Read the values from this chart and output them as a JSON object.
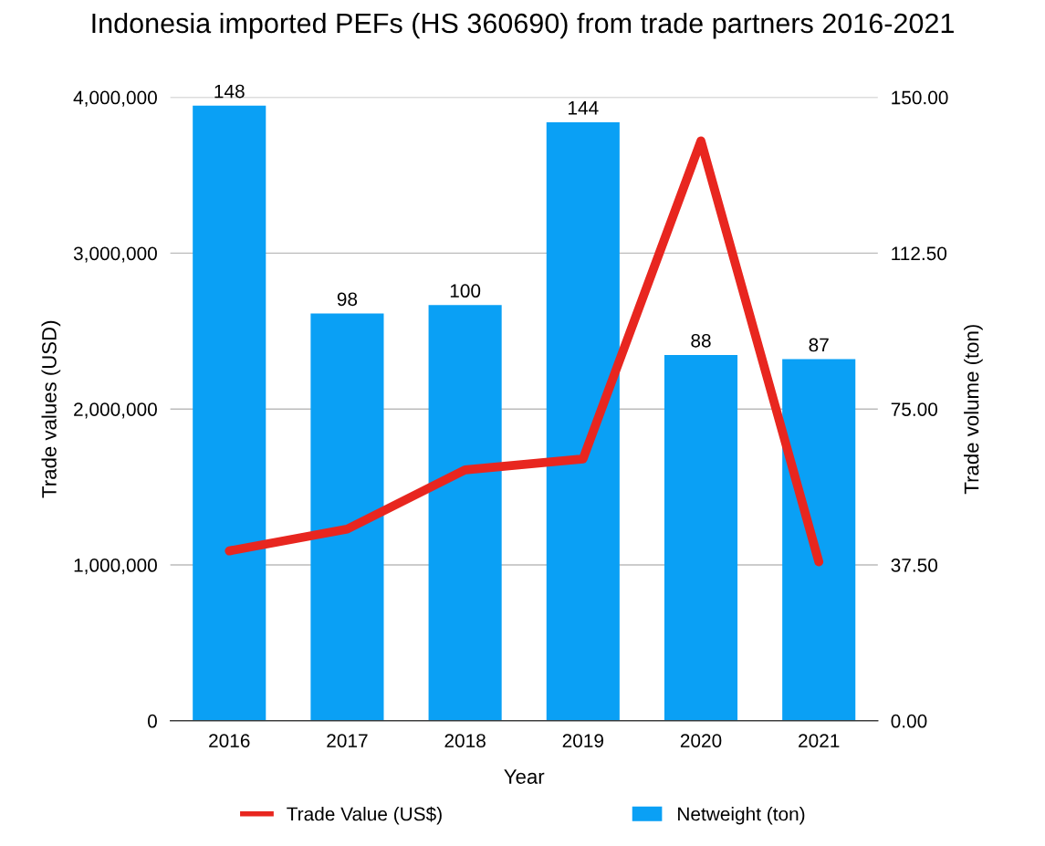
{
  "chart_data": {
    "type": "bar",
    "title": "Indonesia imported PEFs (HS 360690) from trade partners 2016-2021",
    "xlabel": "Year",
    "ylabel": "Trade values (USD)",
    "y2label": "Trade volume (ton)",
    "categories": [
      "2016",
      "2017",
      "2018",
      "2019",
      "2020",
      "2021"
    ],
    "series": [
      {
        "name": "Trade Value (US$)",
        "type": "line",
        "color": "#e8261f",
        "values": [
          1090000,
          1230000,
          1610000,
          1680000,
          3720000,
          1020000
        ]
      },
      {
        "name": "Netweight (ton)",
        "axis": "y2",
        "color": "#0aa0f5",
        "values": [
          148,
          98,
          100,
          144,
          88,
          87
        ],
        "value_labels": [
          "148",
          "98",
          "100",
          "144",
          "88",
          "87"
        ]
      }
    ],
    "ylim": [
      0,
      4000000
    ],
    "yticks": [
      {
        "value": 0,
        "label": "0"
      },
      {
        "value": 1000000,
        "label": "1,000,000"
      },
      {
        "value": 2000000,
        "label": "2,000,000"
      },
      {
        "value": 3000000,
        "label": "3,000,000"
      },
      {
        "value": 4000000,
        "label": "4,000,000"
      }
    ],
    "y2lim": [
      0,
      150
    ],
    "y2ticks": [
      {
        "value": 0,
        "label": "0.00"
      },
      {
        "value": 37.5,
        "label": "37.50"
      },
      {
        "value": 75,
        "label": "75.00"
      },
      {
        "value": 112.5,
        "label": "112.50"
      },
      {
        "value": 150,
        "label": "150.00"
      }
    ],
    "grid": "y",
    "legend": "bottom",
    "line_style": "solid",
    "marker": "none"
  }
}
